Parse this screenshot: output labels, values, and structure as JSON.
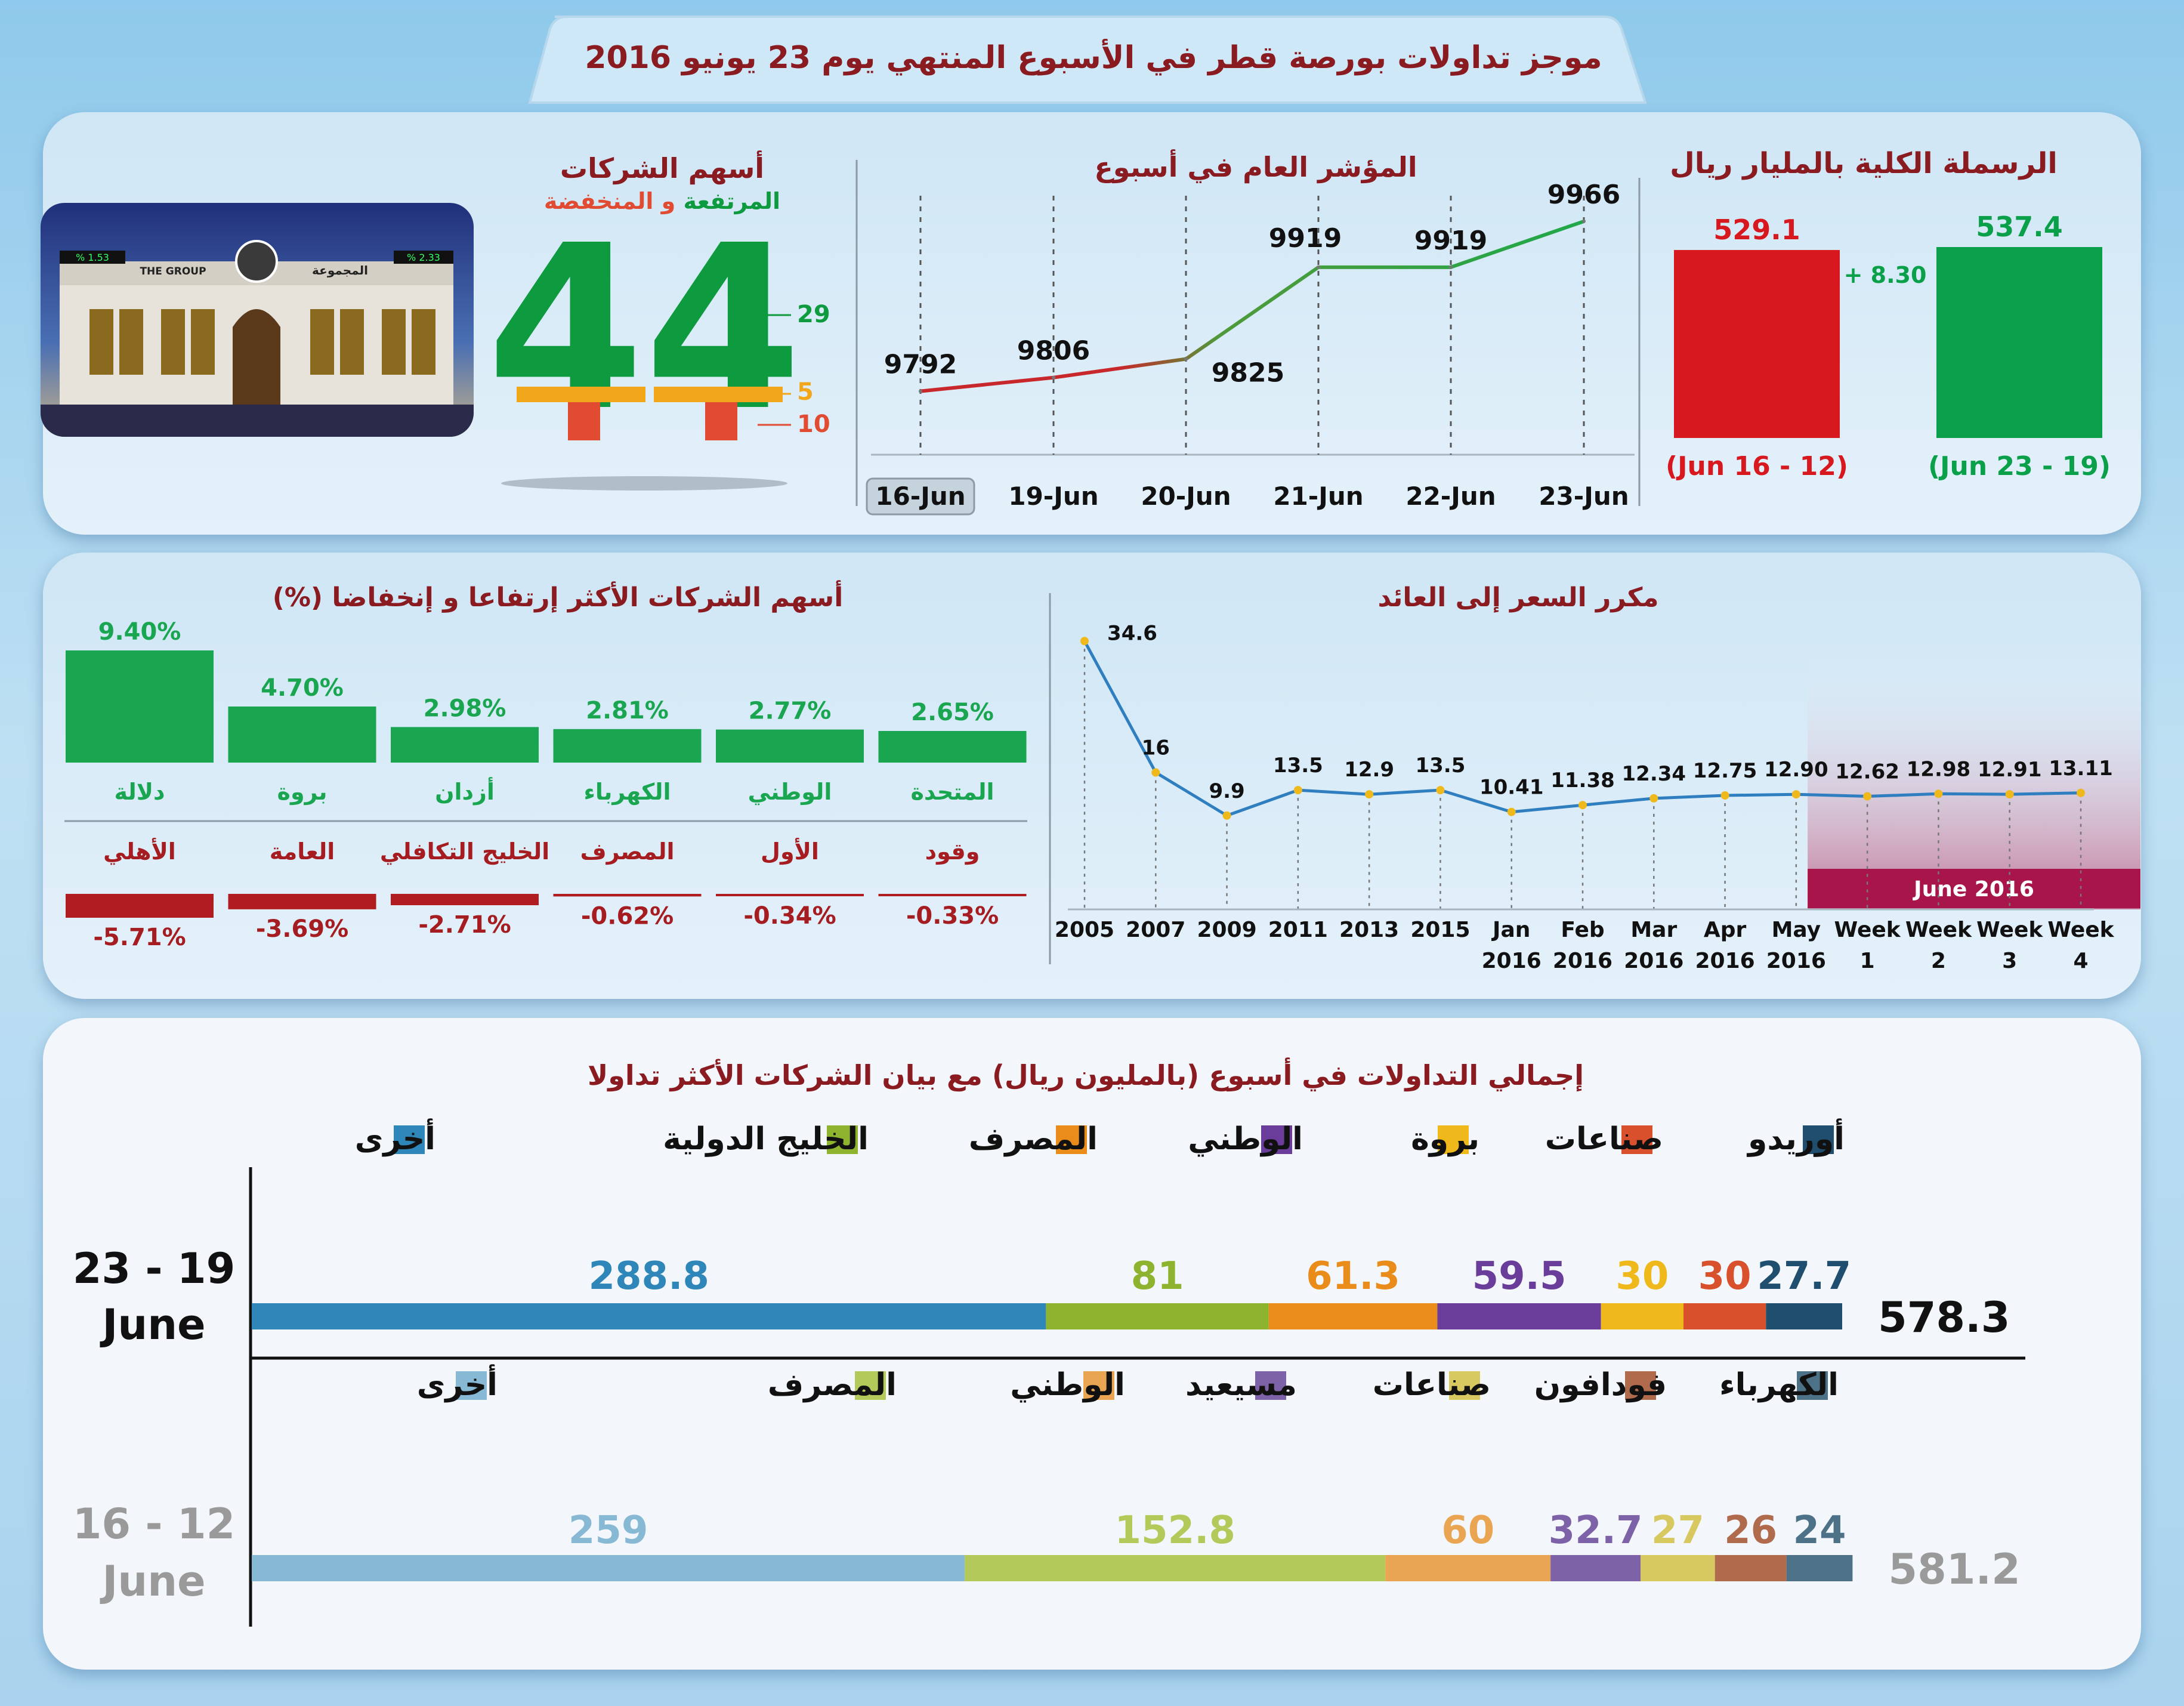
{
  "header": {
    "title": "موجز تداولات بورصة قطر في الأسبوع المنتهي يوم 23 يونيو 2016"
  },
  "capitalization": {
    "title": "الرسملة الكلية بالمليار ريال",
    "change_label": "+ 8.30",
    "bars": [
      {
        "value": 529.1,
        "label": "529.1",
        "period": "(Jun 16 - 12)",
        "color": "#d7191f"
      },
      {
        "value": 537.4,
        "label": "537.4",
        "period": "(Jun 23 - 19)",
        "color": "#0aa04a"
      }
    ]
  },
  "companies": {
    "title": "أسهم الشركات",
    "subtitle_up": "المرتفعة",
    "subtitle_and": "و",
    "subtitle_down": "المنخفضة",
    "total_label": "44",
    "total": 44,
    "up_label": "29",
    "up": 29,
    "unchanged_label": "5",
    "unchanged": 5,
    "down_label": "10",
    "down": 10,
    "up_color": "#0e9a3e",
    "unchanged_color": "#f2a71b",
    "down_color": "#e04b32",
    "photo_sign_en": "THE GROUP",
    "photo_sign_ar": "المجموعة",
    "photo_ticker_left": "% 1.53",
    "photo_ticker_right": "% 2.33"
  },
  "chart_data": [
    {
      "type": "line",
      "title": "المؤشر العام في أسبوع",
      "categories": [
        "16-Jun",
        "19-Jun",
        "20-Jun",
        "21-Jun",
        "22-Jun",
        "23-Jun"
      ],
      "values": [
        9792,
        9806,
        9825,
        9919,
        9919,
        9966
      ],
      "labels": [
        "9792",
        "9806",
        "9825",
        "9919",
        "9919",
        "9966"
      ],
      "highlighted_category": "16-Jun"
    },
    {
      "type": "bar",
      "title": "الرسملة الكلية بالمليار ريال",
      "categories": [
        "(Jun 16 - 12)",
        "(Jun 23 - 19)"
      ],
      "values": [
        529.1,
        537.4
      ]
    },
    {
      "type": "bar",
      "title": "أسهم الشركات الأكثر إرتفاعا و إنخفاضا",
      "title_unit": "(%)",
      "gainers": [
        {
          "name": "دلالة",
          "value": 9.4,
          "label": "9.40%"
        },
        {
          "name": "بروة",
          "value": 4.7,
          "label": "4.70%"
        },
        {
          "name": "أزدان",
          "value": 2.98,
          "label": "2.98%"
        },
        {
          "name": "الكهرباء",
          "value": 2.81,
          "label": "2.81%"
        },
        {
          "name": "الوطني",
          "value": 2.77,
          "label": "2.77%"
        },
        {
          "name": "المتحدة",
          "value": 2.65,
          "label": "2.65%"
        }
      ],
      "losers": [
        {
          "name": "الأهلي",
          "value": -5.71,
          "label": "-5.71%"
        },
        {
          "name": "العامة",
          "value": -3.69,
          "label": "-3.69%"
        },
        {
          "name": "الخليج التكافلي",
          "value": -2.71,
          "label": "-2.71%"
        },
        {
          "name": "المصرف",
          "value": -0.62,
          "label": "-0.62%"
        },
        {
          "name": "الأول",
          "value": -0.34,
          "label": "-0.34%"
        },
        {
          "name": "وقود",
          "value": -0.33,
          "label": "-0.33%"
        }
      ]
    },
    {
      "type": "line",
      "title": "مكرر السعر إلى العائد",
      "categories": [
        [
          "2005"
        ],
        [
          "2007"
        ],
        [
          "2009"
        ],
        [
          "2011"
        ],
        [
          "2013"
        ],
        [
          "2015"
        ],
        [
          "Jan",
          "2016"
        ],
        [
          "Feb",
          "2016"
        ],
        [
          "Mar",
          "2016"
        ],
        [
          "Apr",
          "2016"
        ],
        [
          "May",
          "2016"
        ],
        [
          "Week",
          "1"
        ],
        [
          "Week",
          "2"
        ],
        [
          "Week",
          "3"
        ],
        [
          "Week",
          "4"
        ]
      ],
      "values": [
        34.6,
        16,
        9.9,
        13.5,
        12.9,
        13.5,
        10.41,
        11.38,
        12.34,
        12.75,
        12.9,
        12.62,
        12.98,
        12.91,
        13.11
      ],
      "labels": [
        "34.6",
        "16",
        "9.9",
        "13.5",
        "12.9",
        "13.5",
        "10.41",
        "11.38",
        "12.34",
        "12.75",
        "12.90",
        "12.62",
        "12.98",
        "12.91",
        "13.11"
      ],
      "highlight_label": "June 2016",
      "highlight_range": [
        "Week 1",
        "Week 4"
      ]
    },
    {
      "type": "stacked-bar",
      "title": "إجمالي التداولات في أسبوع (بالمليون ريال) مع  بيان الشركات الأكثر تداولا",
      "rows": [
        {
          "period": [
            "23 - 19",
            "June"
          ],
          "total": 578.3,
          "total_label": "578.3",
          "segments": [
            {
              "name": "أخرى",
              "value": 288.8,
              "label": "288.8",
              "color": "#2f86b8"
            },
            {
              "name": "الخليج الدولية",
              "value": 81,
              "label": "81",
              "color": "#8db32f"
            },
            {
              "name": "المصرف",
              "value": 61.3,
              "label": "61.3",
              "color": "#e98c1a"
            },
            {
              "name": "الوطني",
              "value": 59.5,
              "label": "59.5",
              "color": "#6a3d9a"
            },
            {
              "name": "بروة",
              "value": 30,
              "label": "30",
              "color": "#f0b91b"
            },
            {
              "name": "صناعات",
              "value": 30,
              "label": "30",
              "color": "#d9512c"
            },
            {
              "name": "أوريدو",
              "value": 27.7,
              "label": "27.7",
              "color": "#1f4e6e"
            }
          ]
        },
        {
          "period": [
            "16 - 12",
            "June"
          ],
          "total": 581.2,
          "total_label": "581.2",
          "segments": [
            {
              "name": "أخرى",
              "value": 259,
              "label": "259",
              "color": "#87b9d4"
            },
            {
              "name": "المصرف",
              "value": 152.8,
              "label": "152.8",
              "color": "#b3c95a"
            },
            {
              "name": "الوطني",
              "value": 60,
              "label": "60",
              "color": "#e9a551"
            },
            {
              "name": "مسيعيد",
              "value": 32.7,
              "label": "32.7",
              "color": "#7d62a8"
            },
            {
              "name": "صناعات",
              "value": 27,
              "label": "27",
              "color": "#d7c860"
            },
            {
              "name": "فودافون",
              "value": 26,
              "label": "26",
              "color": "#b06a4c"
            },
            {
              "name": "الكهرباء",
              "value": 24,
              "label": "24",
              "color": "#4d7287"
            }
          ]
        }
      ]
    }
  ]
}
